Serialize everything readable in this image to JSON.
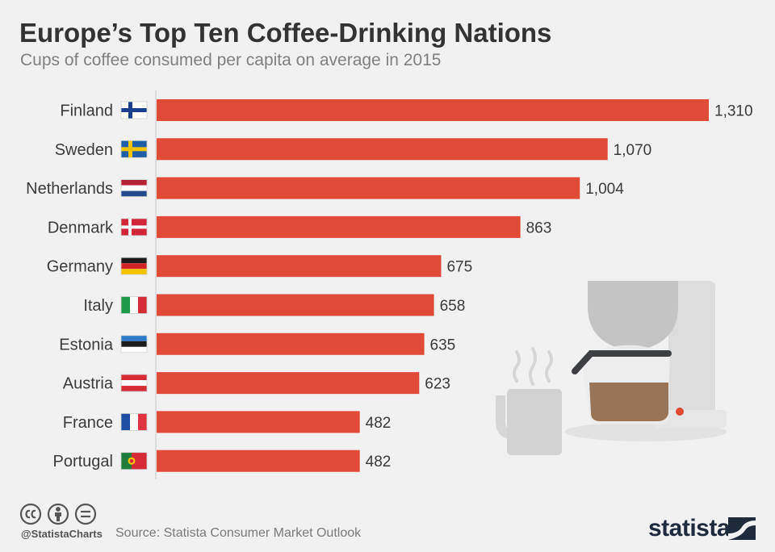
{
  "header": {
    "title": "Europe’s Top Ten Coffee-Drinking Nations",
    "subtitle": "Cups of coffee consumed per capita on average in 2015"
  },
  "chart_data": {
    "type": "bar",
    "orientation": "horizontal",
    "title": "Europe’s Top Ten Coffee-Drinking Nations",
    "subtitle": "Cups of coffee consumed per capita on average in 2015",
    "categories": [
      "Finland",
      "Sweden",
      "Netherlands",
      "Denmark",
      "Germany",
      "Italy",
      "Estonia",
      "Austria",
      "France",
      "Portugal"
    ],
    "values": [
      1310,
      1070,
      1004,
      863,
      675,
      658,
      635,
      623,
      482,
      482
    ],
    "value_labels": [
      "1,310",
      "1,070",
      "1,004",
      "863",
      "675",
      "658",
      "635",
      "623",
      "482",
      "482"
    ],
    "xlim": [
      0,
      1310
    ],
    "grid": false,
    "bar_color": "#e04a37"
  },
  "flags": [
    "finland-flag-icon",
    "sweden-flag-icon",
    "netherlands-flag-icon",
    "denmark-flag-icon",
    "germany-flag-icon",
    "italy-flag-icon",
    "estonia-flag-icon",
    "austria-flag-icon",
    "france-flag-icon",
    "portugal-flag-icon"
  ],
  "decorations": {
    "illustration": [
      "coffee-machine-icon",
      "coffee-mug-icon",
      "steam-icon"
    ]
  },
  "footer": {
    "handle": "@StatistaCharts",
    "source": "Source: Statista Consumer Market Outlook",
    "brand": "statista",
    "license_icons": [
      "cc-icon",
      "by-icon",
      "nd-icon"
    ]
  }
}
